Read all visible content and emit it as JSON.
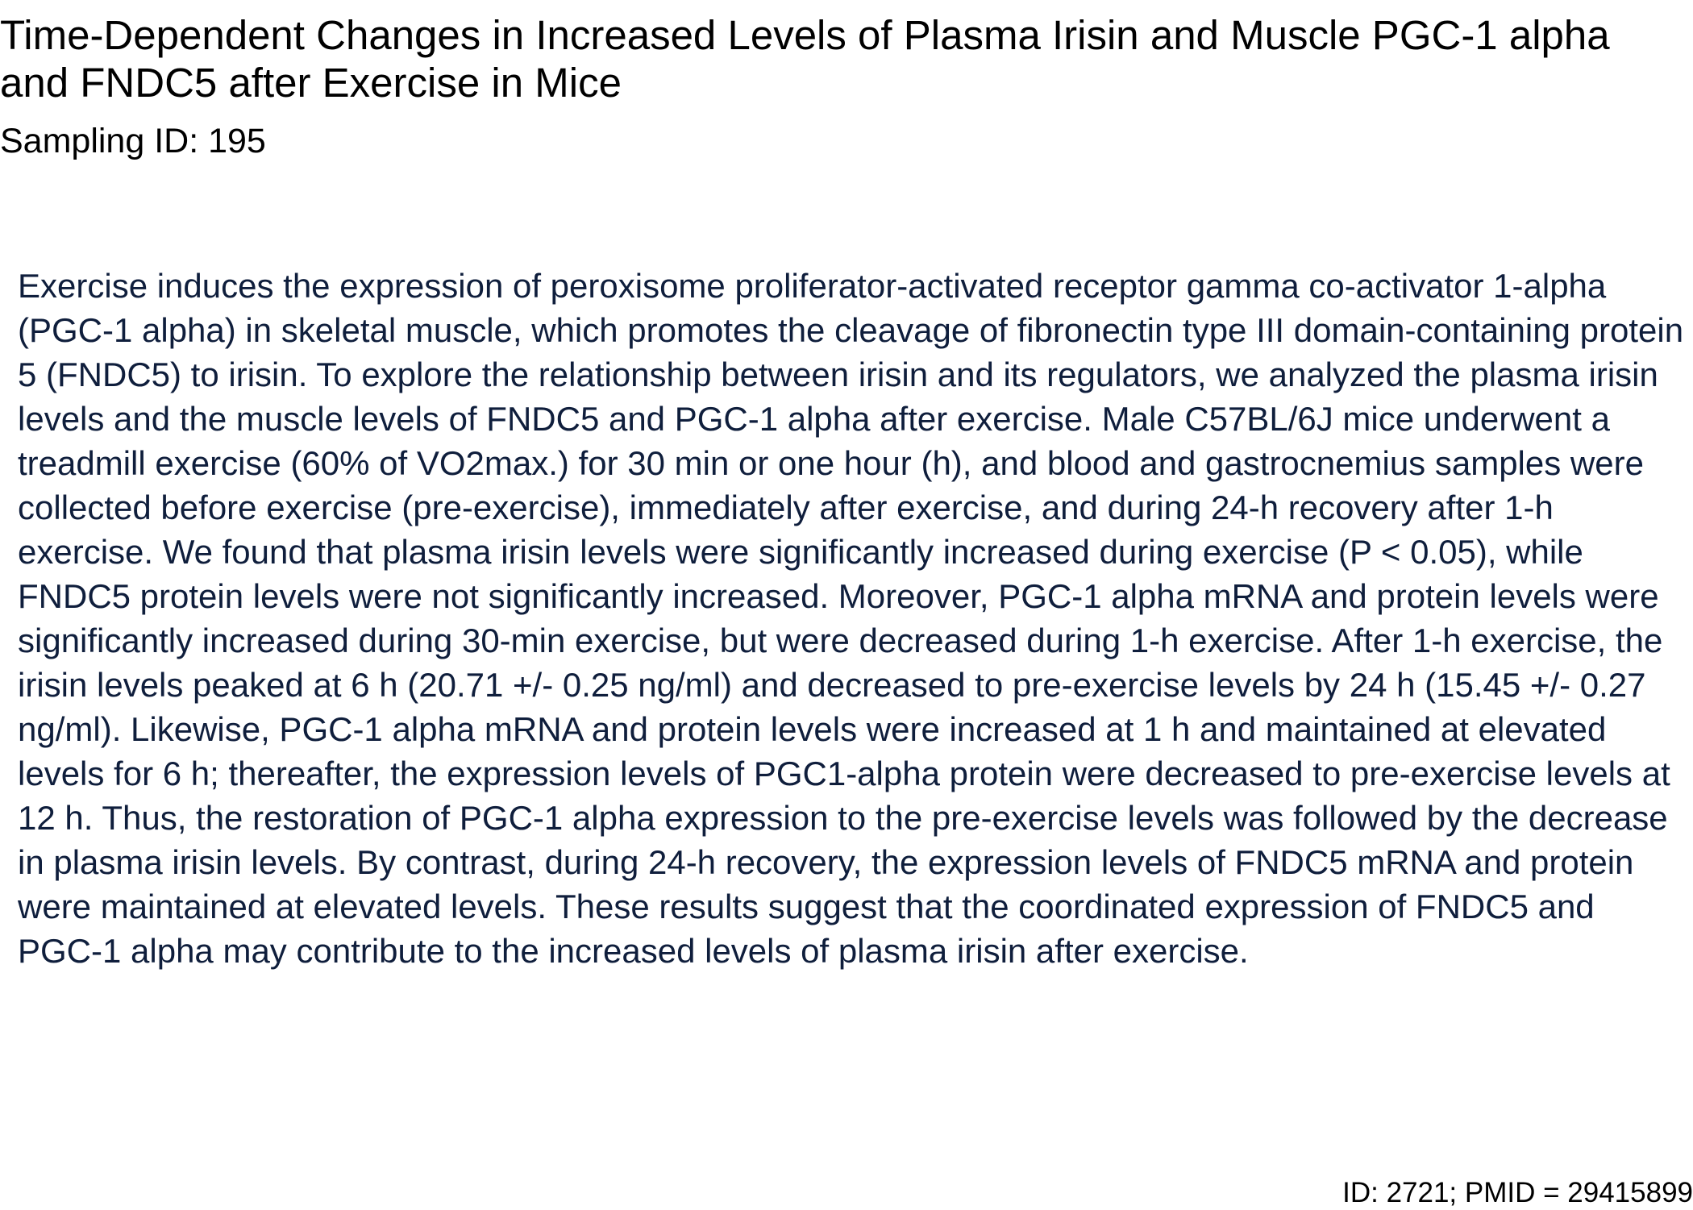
{
  "document": {
    "title": "Time-Dependent Changes in Increased Levels of Plasma Irisin and Muscle PGC-1 alpha and FNDC5 after Exercise in Mice",
    "sampling_label": "Sampling ID: 195",
    "abstract": "Exercise induces the expression of peroxisome proliferator-activated receptor gamma co-activator 1-alpha (PGC-1 alpha) in skeletal muscle, which promotes the cleavage of fibronectin type III domain-containing protein 5 (FNDC5) to irisin. To explore the relationship between irisin and its regulators, we analyzed the plasma irisin levels and the muscle levels of FNDC5 and PGC-1 alpha after exercise. Male C57BL/6J mice underwent a treadmill exercise (60% of VO2max.) for 30 min or one hour (h), and blood and gastrocnemius samples were collected before exercise (pre-exercise), immediately after exercise, and during 24-h recovery after 1-h exercise. We found that plasma irisin levels were significantly increased during exercise (P < 0.05), while FNDC5 protein levels were not significantly increased. Moreover, PGC-1 alpha mRNA and protein levels were significantly increased during 30-min exercise, but were decreased during 1-h exercise. After 1-h exercise, the irisin levels peaked at 6 h (20.71 +/- 0.25 ng/ml) and decreased to pre-exercise levels by 24 h (15.45 +/- 0.27 ng/ml). Likewise, PGC-1 alpha mRNA and protein levels were increased at 1 h and maintained at elevated levels for 6 h; thereafter, the expression levels of PGC1-alpha protein were decreased to pre-exercise levels at 12 h. Thus, the restoration of PGC-1 alpha expression to the pre-exercise levels was followed by the decrease in plasma irisin levels. By contrast, during 24-h recovery, the expression levels of FNDC5 mRNA and protein were maintained at elevated levels. These results suggest that the coordinated expression of FNDC5 and PGC-1 alpha may contribute to the increased levels of plasma irisin after exercise.",
    "footer": "ID: 2721; PMID = 29415899"
  },
  "colors": {
    "title_text": "#000000",
    "abstract_text": "#0f1e3c",
    "background": "#ffffff"
  }
}
